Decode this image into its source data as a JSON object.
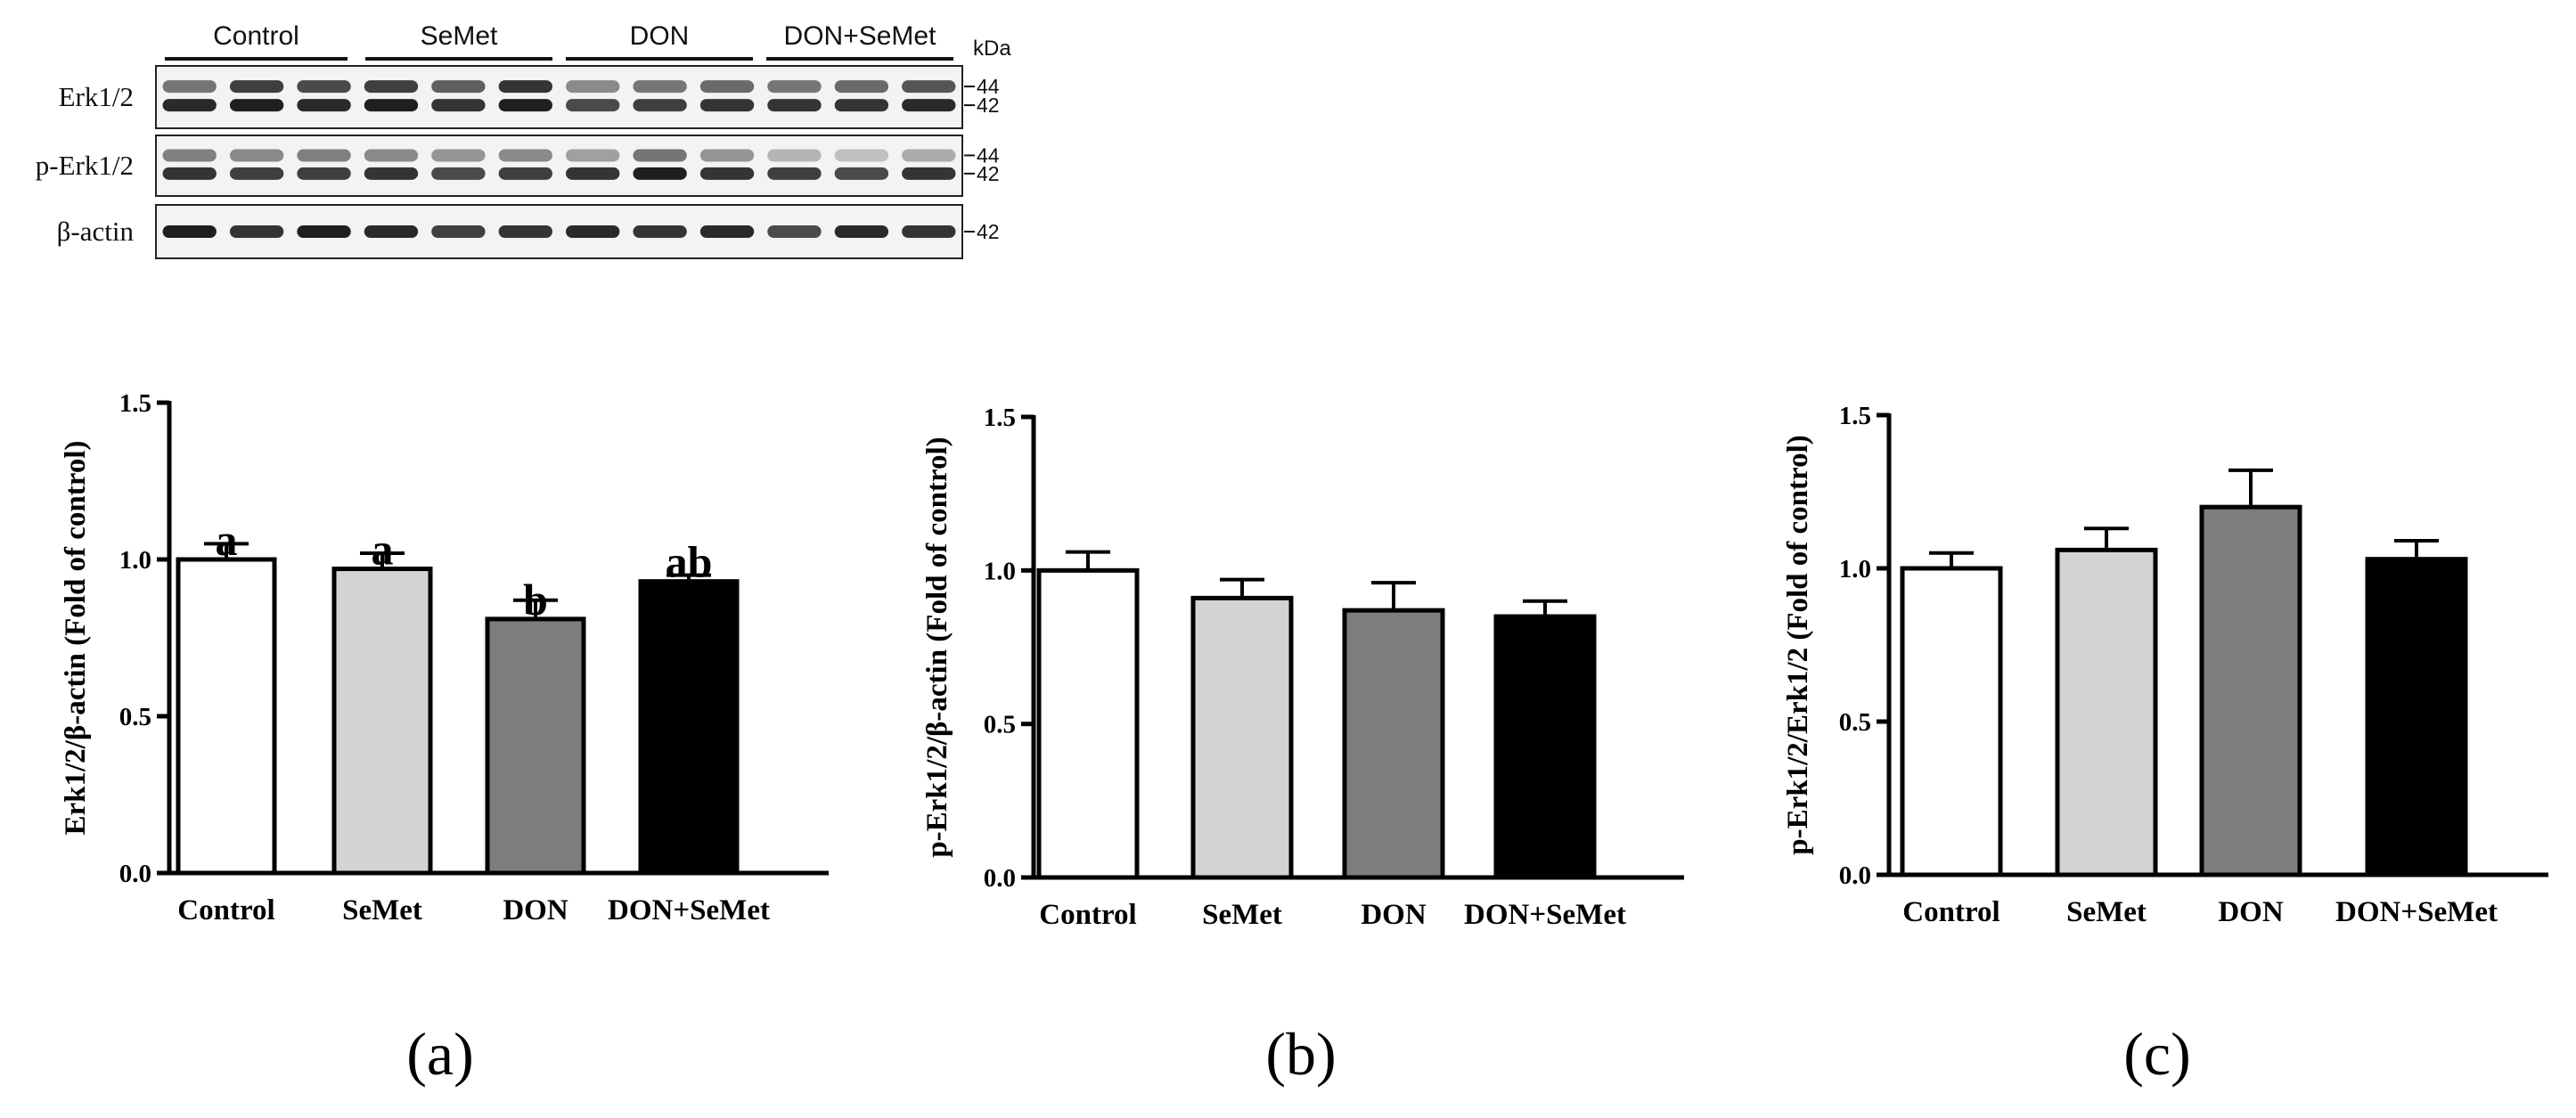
{
  "blot": {
    "groups": [
      "Control",
      "SeMet",
      "DON",
      "DON+SeMet"
    ],
    "unit_label": "kDa",
    "rows": [
      {
        "label": "Erk1/2",
        "markers": [
          "44",
          "42"
        ],
        "intensity": [
          [
            0.55,
            0.8,
            0.75,
            0.8,
            0.65,
            0.85,
            0.45,
            0.55,
            0.6,
            0.55,
            0.6,
            0.7
          ],
          [
            0.9,
            0.95,
            0.9,
            0.95,
            0.85,
            0.95,
            0.75,
            0.8,
            0.85,
            0.85,
            0.85,
            0.9
          ]
        ]
      },
      {
        "label": "p-Erk1/2",
        "markers": [
          "44",
          "42"
        ],
        "intensity": [
          [
            0.5,
            0.45,
            0.5,
            0.45,
            0.4,
            0.45,
            0.35,
            0.55,
            0.4,
            0.25,
            0.2,
            0.3
          ],
          [
            0.85,
            0.8,
            0.8,
            0.85,
            0.75,
            0.8,
            0.85,
            0.95,
            0.85,
            0.8,
            0.75,
            0.85
          ]
        ]
      },
      {
        "label": "β-actin",
        "markers": [
          "42"
        ],
        "intensity": [
          [
            0.95,
            0.85,
            0.95,
            0.9,
            0.8,
            0.85,
            0.9,
            0.85,
            0.9,
            0.75,
            0.9,
            0.85
          ]
        ]
      }
    ]
  },
  "chart_data": [
    {
      "type": "bar",
      "panel_label": "(a)",
      "title": "",
      "xlabel": "",
      "ylabel": "Erk1/2/β-actin (Fold of control)",
      "categories": [
        "Control",
        "SeMet",
        "DON",
        "DON+SeMet"
      ],
      "values": [
        1.0,
        0.97,
        0.81,
        0.93
      ],
      "errors": [
        0.05,
        0.05,
        0.06,
        0.02
      ],
      "sig_letters": [
        "a",
        "a",
        "b",
        "ab"
      ],
      "colors": [
        "#ffffff",
        "#d3d3d3",
        "#7d7d7d",
        "#000000"
      ],
      "ylim": [
        0,
        1.5
      ],
      "yticks": [
        "0.0",
        "0.5",
        "1.0",
        "1.5"
      ]
    },
    {
      "type": "bar",
      "panel_label": "(b)",
      "title": "",
      "xlabel": "",
      "ylabel": "p-Erk1/2/β-actin (Fold of control)",
      "categories": [
        "Control",
        "SeMet",
        "DON",
        "DON+SeMet"
      ],
      "values": [
        1.0,
        0.91,
        0.87,
        0.85
      ],
      "errors": [
        0.06,
        0.06,
        0.09,
        0.05
      ],
      "sig_letters": [],
      "colors": [
        "#ffffff",
        "#d3d3d3",
        "#7d7d7d",
        "#000000"
      ],
      "ylim": [
        0,
        1.5
      ],
      "yticks": [
        "0.0",
        "0.5",
        "1.0",
        "1.5"
      ]
    },
    {
      "type": "bar",
      "panel_label": "(c)",
      "title": "",
      "xlabel": "",
      "ylabel": "p-Erk1/2/Erk1/2 (Fold of control)",
      "categories": [
        "Control",
        "SeMet",
        "DON",
        "DON+SeMet"
      ],
      "values": [
        1.0,
        1.06,
        1.2,
        1.03
      ],
      "errors": [
        0.05,
        0.07,
        0.12,
        0.06
      ],
      "sig_letters": [],
      "colors": [
        "#ffffff",
        "#d3d3d3",
        "#7d7d7d",
        "#000000"
      ],
      "ylim": [
        0,
        1.5
      ],
      "yticks": [
        "0.0",
        "0.5",
        "1.0",
        "1.5"
      ]
    }
  ]
}
